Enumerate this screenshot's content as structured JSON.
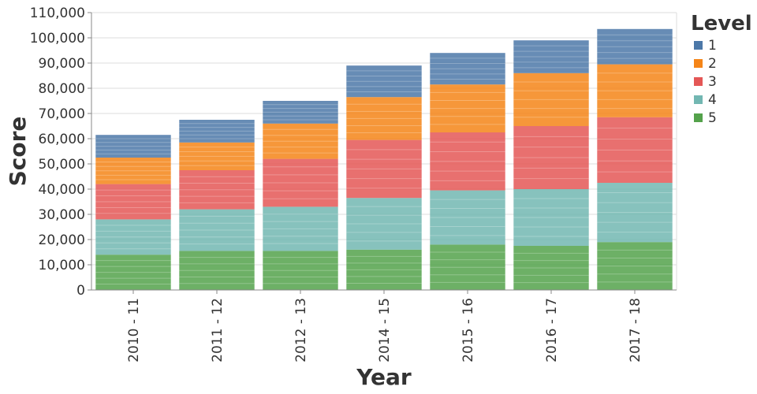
{
  "chart_data": {
    "type": "bar",
    "stacked": true,
    "xlabel": "Year",
    "ylabel": "Score",
    "ylim": [
      0,
      110000
    ],
    "yticks": [
      0,
      10000,
      20000,
      30000,
      40000,
      50000,
      60000,
      70000,
      80000,
      90000,
      100000,
      110000
    ],
    "ytick_labels": [
      "0",
      "10,000",
      "20,000",
      "30,000",
      "40,000",
      "50,000",
      "60,000",
      "70,000",
      "80,000",
      "90,000",
      "100,000",
      "110,000"
    ],
    "grid": true,
    "legend_position": "right",
    "legend_title": "Level",
    "categories": [
      "2010 - 11",
      "2011 - 12",
      "2012 - 13",
      "2014 - 15",
      "2015 - 16",
      "2016 - 17",
      "2017 - 18"
    ],
    "series": [
      {
        "name": "5",
        "color": "#54a24b",
        "values": [
          14000,
          15500,
          15500,
          16000,
          18000,
          17500,
          19000
        ]
      },
      {
        "name": "4",
        "color": "#72b7b2",
        "values": [
          14000,
          16500,
          17500,
          20500,
          21500,
          22500,
          23500
        ]
      },
      {
        "name": "3",
        "color": "#e45756",
        "values": [
          14000,
          15500,
          19000,
          23000,
          23000,
          25000,
          26000
        ]
      },
      {
        "name": "2",
        "color": "#f58518",
        "values": [
          10500,
          11000,
          14000,
          17000,
          19000,
          21000,
          21000
        ]
      },
      {
        "name": "1",
        "color": "#4c78a8",
        "values": [
          9000,
          9000,
          9000,
          12500,
          12500,
          13000,
          14000
        ]
      }
    ]
  }
}
